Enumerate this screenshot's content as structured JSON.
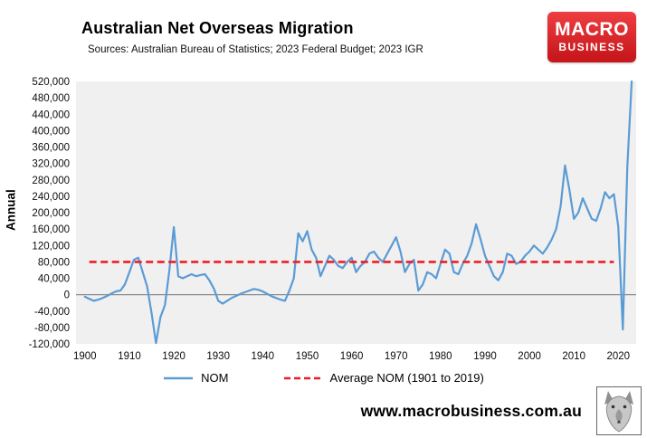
{
  "brand": {
    "name_top": "MACRO",
    "name_bottom": "BUSINESS",
    "red": "#c9181d",
    "red_light": "#ef3e42"
  },
  "footer": {
    "url": "www.macrobusiness.com.au"
  },
  "chart_data": {
    "type": "line",
    "title": "Australian Net Overseas Migration",
    "subtitle": "Sources: Australian Bureau of Statistics; 2023 Federal Budget; 2023 IGR",
    "ylabel": "Annual",
    "xlabel": "",
    "grid": false,
    "legend_position": "bottom",
    "ylim": [
      -120000,
      520000
    ],
    "ytick_step": 40000,
    "xlim": [
      1898,
      2024
    ],
    "xticks": [
      1900,
      1910,
      1920,
      1930,
      1940,
      1950,
      1960,
      1970,
      1980,
      1990,
      2000,
      2010,
      2020
    ],
    "colors": {
      "nom": "#5b9bd5",
      "average": "#ee1c25",
      "plot_background": "#f0f0f0",
      "zero_line": "#8c8c8c"
    },
    "x": [
      1900,
      1901,
      1902,
      1903,
      1904,
      1905,
      1906,
      1907,
      1908,
      1909,
      1910,
      1911,
      1912,
      1913,
      1914,
      1915,
      1916,
      1917,
      1918,
      1919,
      1920,
      1921,
      1922,
      1923,
      1924,
      1925,
      1926,
      1927,
      1928,
      1929,
      1930,
      1931,
      1932,
      1933,
      1934,
      1935,
      1936,
      1937,
      1938,
      1939,
      1940,
      1941,
      1942,
      1943,
      1944,
      1945,
      1946,
      1947,
      1948,
      1949,
      1950,
      1951,
      1952,
      1953,
      1954,
      1955,
      1956,
      1957,
      1958,
      1959,
      1960,
      1961,
      1962,
      1963,
      1964,
      1965,
      1966,
      1967,
      1968,
      1969,
      1970,
      1971,
      1972,
      1973,
      1974,
      1975,
      1976,
      1977,
      1978,
      1979,
      1980,
      1981,
      1982,
      1983,
      1984,
      1985,
      1986,
      1987,
      1988,
      1989,
      1990,
      1991,
      1992,
      1993,
      1994,
      1995,
      1996,
      1997,
      1998,
      1999,
      2000,
      2001,
      2002,
      2003,
      2004,
      2005,
      2006,
      2007,
      2008,
      2009,
      2010,
      2011,
      2012,
      2013,
      2014,
      2015,
      2016,
      2017,
      2018,
      2019,
      2020,
      2021,
      2022,
      2023
    ],
    "series": [
      {
        "name": "NOM",
        "values": [
          -5000,
          -10000,
          -15000,
          -12000,
          -8000,
          -3000,
          3000,
          8000,
          10000,
          25000,
          55000,
          85000,
          90000,
          55000,
          20000,
          -45000,
          -118000,
          -55000,
          -25000,
          60000,
          165000,
          45000,
          40000,
          45000,
          50000,
          45000,
          48000,
          50000,
          35000,
          15000,
          -15000,
          -22000,
          -15000,
          -8000,
          -3000,
          2000,
          6000,
          10000,
          14000,
          12000,
          8000,
          2000,
          -4000,
          -8000,
          -12000,
          -15000,
          10000,
          40000,
          150000,
          130000,
          155000,
          110000,
          90000,
          45000,
          70000,
          95000,
          85000,
          70000,
          65000,
          80000,
          90000,
          55000,
          70000,
          80000,
          100000,
          105000,
          90000,
          80000,
          100000,
          120000,
          140000,
          105000,
          55000,
          75000,
          85000,
          10000,
          25000,
          55000,
          50000,
          40000,
          75000,
          110000,
          100000,
          55000,
          50000,
          75000,
          95000,
          125000,
          172000,
          135000,
          95000,
          70000,
          45000,
          35000,
          55000,
          100000,
          95000,
          75000,
          80000,
          95000,
          105000,
          120000,
          110000,
          100000,
          115000,
          135000,
          160000,
          215000,
          315000,
          255000,
          185000,
          200000,
          235000,
          210000,
          185000,
          180000,
          210000,
          250000,
          235000,
          245000,
          165000,
          -85000,
          310000,
          520000
        ]
      }
    ],
    "average": {
      "label": "Average NOM (1901 to 2019)",
      "value": 80000,
      "x_start": 1901,
      "x_end": 2019
    }
  }
}
